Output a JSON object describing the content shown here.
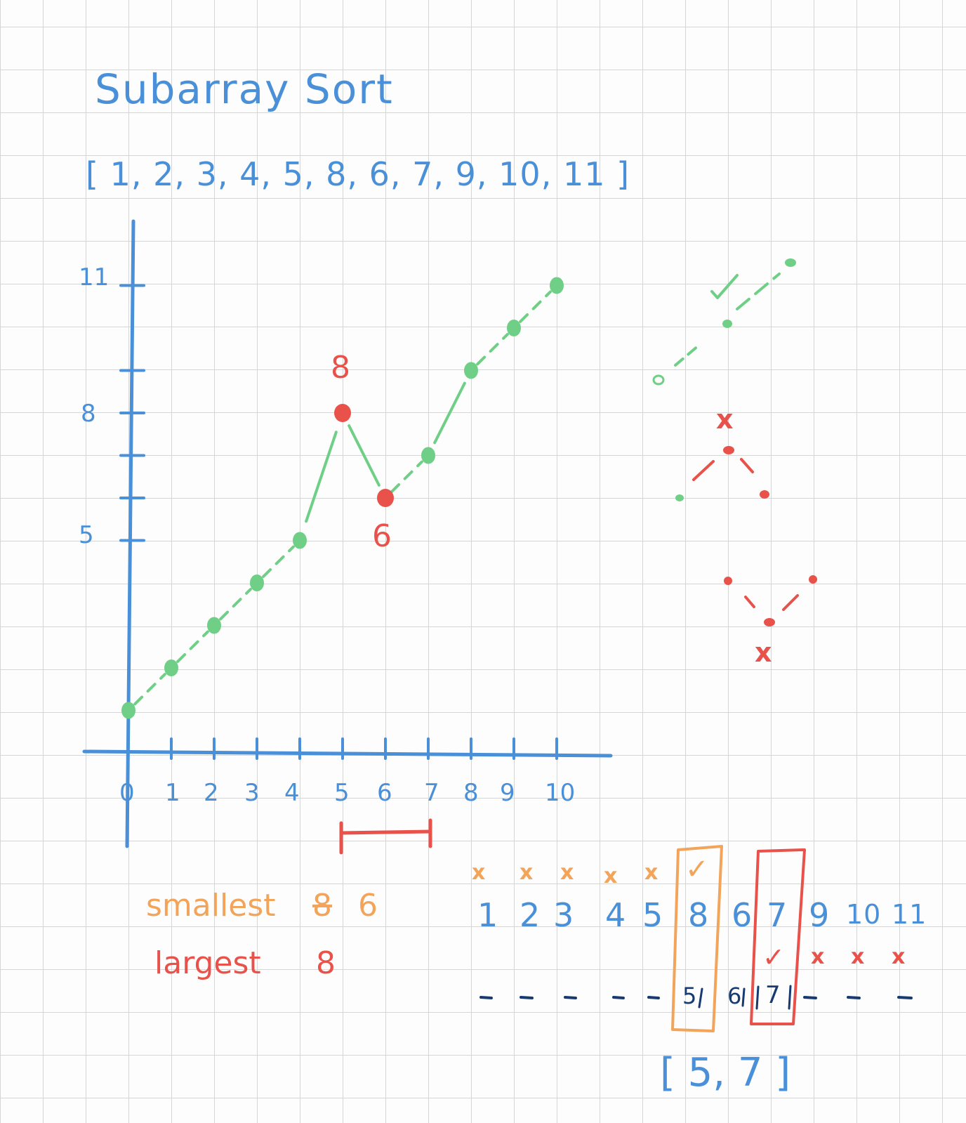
{
  "title": "Subarray Sort",
  "top_array": "[ 1, 2, 3, 4, 5, 8, 6, 7, 9, 10, 11 ]",
  "chart_data": {
    "type": "line",
    "x": [
      0,
      1,
      2,
      3,
      4,
      5,
      6,
      7,
      8,
      9,
      10
    ],
    "y": [
      1,
      2,
      3,
      4,
      5,
      8,
      6,
      7,
      9,
      10,
      11
    ],
    "highlighted_points": [
      {
        "x": 5,
        "y": 8,
        "label": "8"
      },
      {
        "x": 6,
        "y": 6,
        "label": "6"
      }
    ],
    "x_ticks": [
      "0",
      "1",
      "2",
      "3",
      "4",
      "5",
      "6",
      "7",
      "8",
      "9",
      "10"
    ],
    "y_ticks": [
      "5",
      "8",
      "11"
    ],
    "range_marker": [
      5,
      7
    ],
    "colors": {
      "axis": "#4a90d9",
      "normal": "#6fcf86",
      "outlier": "#e8524a",
      "range": "#e8524a"
    }
  },
  "patterns": {
    "increasing": "green-dashes-up",
    "peak_mark": "x",
    "valley_mark": "x"
  },
  "notes": {
    "smallest_label": "smallest",
    "smallest_old": "8",
    "smallest_value": "6",
    "largest_label": "largest",
    "largest_value": "8"
  },
  "bottom_array": {
    "values": [
      "1",
      "2",
      "3",
      "4",
      "5",
      "8",
      "6",
      "7",
      "9",
      "10",
      "11"
    ],
    "top_marks": [
      "x",
      "x",
      "x",
      "x",
      "x",
      "✓"
    ],
    "right_marks": [
      "✓",
      "x",
      "x",
      "x"
    ],
    "index_row": [
      "5",
      "6",
      "7"
    ],
    "result": "[ 5, 7 ]"
  }
}
